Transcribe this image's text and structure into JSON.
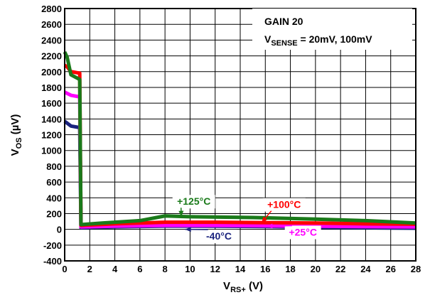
{
  "chart_data": {
    "type": "line",
    "xlabel": {
      "main": "V",
      "sub": "RS+",
      "rest": " (V)"
    },
    "ylabel": {
      "main": "V",
      "sub": "OS",
      "rest": " (µV)"
    },
    "xlim": [
      0,
      28
    ],
    "ylim": [
      -400,
      2800
    ],
    "xticks": [
      "0",
      "2",
      "4",
      "6",
      "8",
      "10",
      "12",
      "14",
      "16",
      "18",
      "20",
      "22",
      "24",
      "26",
      "28"
    ],
    "yticks": [
      "-400",
      "-200",
      "0",
      "200",
      "400",
      "600",
      "800",
      "1000",
      "1200",
      "1400",
      "1600",
      "1800",
      "2000",
      "2200",
      "2400",
      "2600",
      "2800"
    ],
    "grid": true,
    "note": {
      "line1": "GAIN 20",
      "line2_main": "V",
      "line2_sub": "SENSE",
      "line2_rest": " = 20mV, 100mV"
    },
    "series": [
      {
        "name": "-40°C",
        "color": "#1a237e",
        "x": [
          0,
          0.5,
          1.2,
          1.3,
          4,
          8,
          12,
          16,
          20,
          24,
          28
        ],
        "y": [
          1370,
          1310,
          1290,
          20,
          30,
          40,
          40,
          35,
          25,
          20,
          15
        ]
      },
      {
        "name": "+25°C",
        "color": "#ff00ff",
        "x": [
          0,
          0.5,
          1.2,
          1.3,
          4,
          8,
          12,
          16,
          20,
          24,
          28
        ],
        "y": [
          1740,
          1700,
          1680,
          30,
          40,
          50,
          50,
          45,
          40,
          35,
          30
        ]
      },
      {
        "name": "+100°C",
        "color": "#ff0000",
        "x": [
          0,
          0.2,
          0.5,
          1.2,
          1.3,
          4,
          8,
          12,
          16,
          20,
          24,
          28
        ],
        "y": [
          2080,
          2060,
          2000,
          1980,
          50,
          70,
          90,
          90,
          85,
          80,
          70,
          65
        ]
      },
      {
        "name": "+125°C",
        "color": "#1a7a1a",
        "x": [
          0,
          0.2,
          0.5,
          1.2,
          1.3,
          3,
          6,
          8,
          10,
          15,
          20,
          24,
          28
        ],
        "y": [
          2250,
          2180,
          1960,
          1900,
          60,
          80,
          110,
          170,
          160,
          150,
          130,
          110,
          80
        ]
      }
    ],
    "annotations": [
      {
        "label": "+125°C",
        "color": "#1a7a1a",
        "text_x": 10.3,
        "text_y": 310,
        "arrow_to_x": 9.3,
        "arrow_to_y": 160
      },
      {
        "label": "+100°C",
        "color": "#ff0000",
        "text_x": 17.5,
        "text_y": 270,
        "arrow_to_x": 15.7,
        "arrow_to_y": 85
      },
      {
        "label": "+25°C",
        "color": "#ff00ff",
        "text_x": 19.0,
        "text_y": -80,
        "arrow_to_x": 16.1,
        "arrow_to_y": 40
      },
      {
        "label": "-40°C",
        "color": "#1a237e",
        "text_x": 12.3,
        "text_y": -130,
        "arrow_to_x": 9.6,
        "arrow_to_y": 0
      }
    ]
  }
}
